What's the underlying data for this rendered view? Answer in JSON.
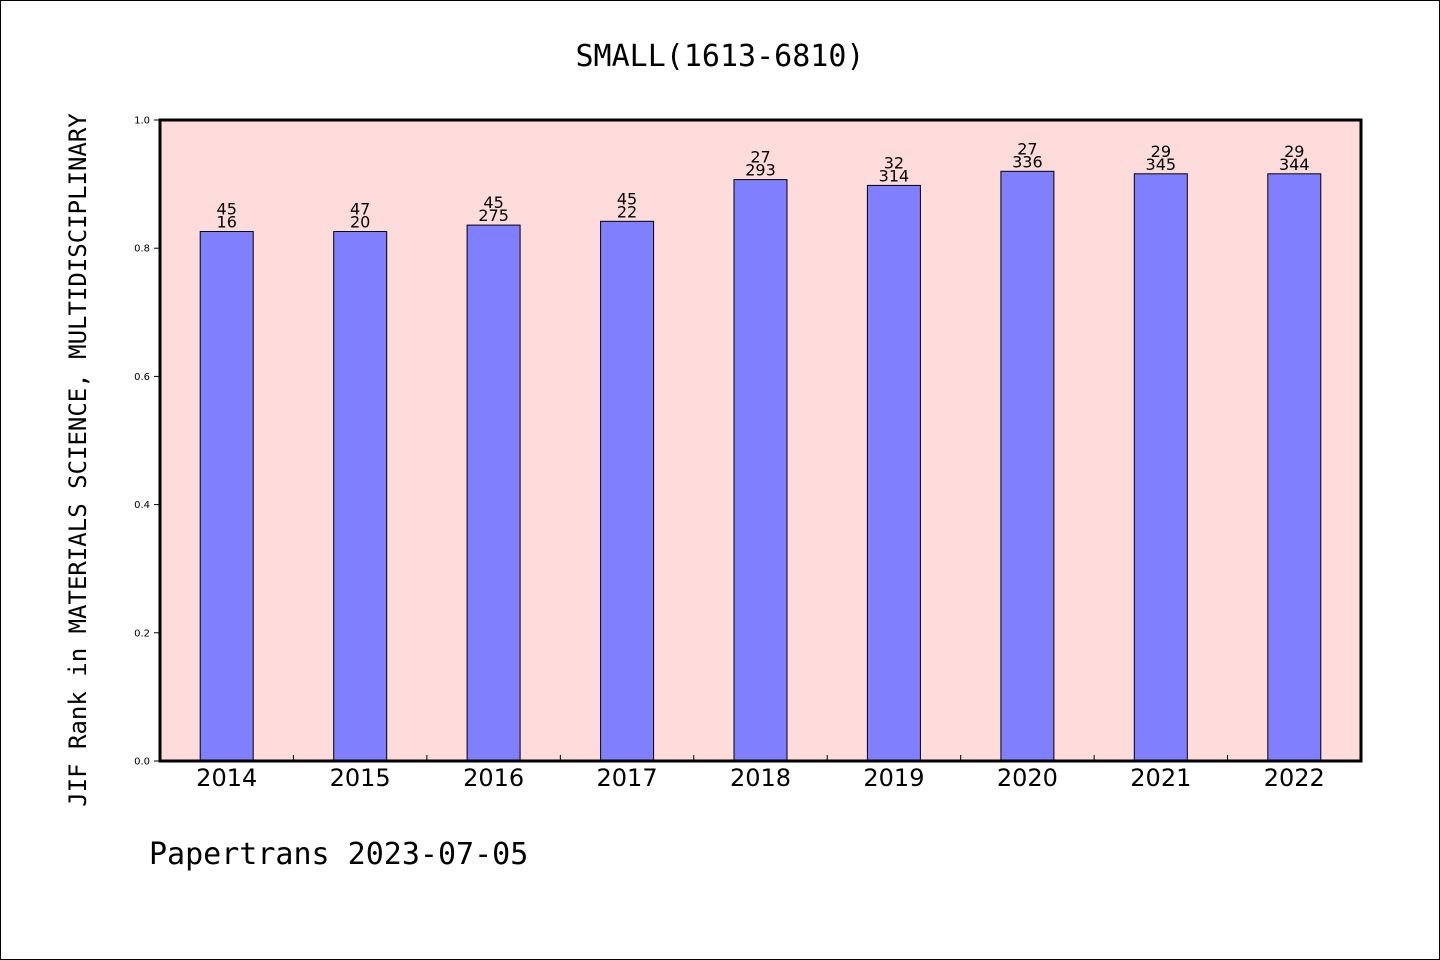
{
  "chart_data": {
    "type": "bar",
    "title": "SMALL(1613-6810)",
    "xlabel": "",
    "ylabel": "JIF Rank in MATERIALS SCIENCE, MULTIDISCIPLINARY",
    "ylim": [
      0.0,
      1.0
    ],
    "yticks": [
      "0.0",
      "0.2",
      "0.4",
      "0.6",
      "0.8",
      "1.0"
    ],
    "categories": [
      "2014",
      "2015",
      "2016",
      "2017",
      "2018",
      "2019",
      "2020",
      "2021",
      "2022"
    ],
    "values": [
      0.826,
      0.826,
      0.836,
      0.842,
      0.907,
      0.898,
      0.92,
      0.916,
      0.916
    ],
    "bar_labels_top": [
      "45",
      "47",
      "45",
      "45",
      "27",
      "32",
      "27",
      "29",
      "29"
    ],
    "bar_labels_bottom": [
      "16",
      "20",
      "275",
      "22",
      "293",
      "314",
      "336",
      "345",
      "344"
    ],
    "grid": false,
    "colors": {
      "bar_fill": "#8080ff",
      "plot_background": "#ffdcdc",
      "axis": "#000000"
    }
  },
  "footer": {
    "text": "Papertrans 2023-07-05"
  }
}
